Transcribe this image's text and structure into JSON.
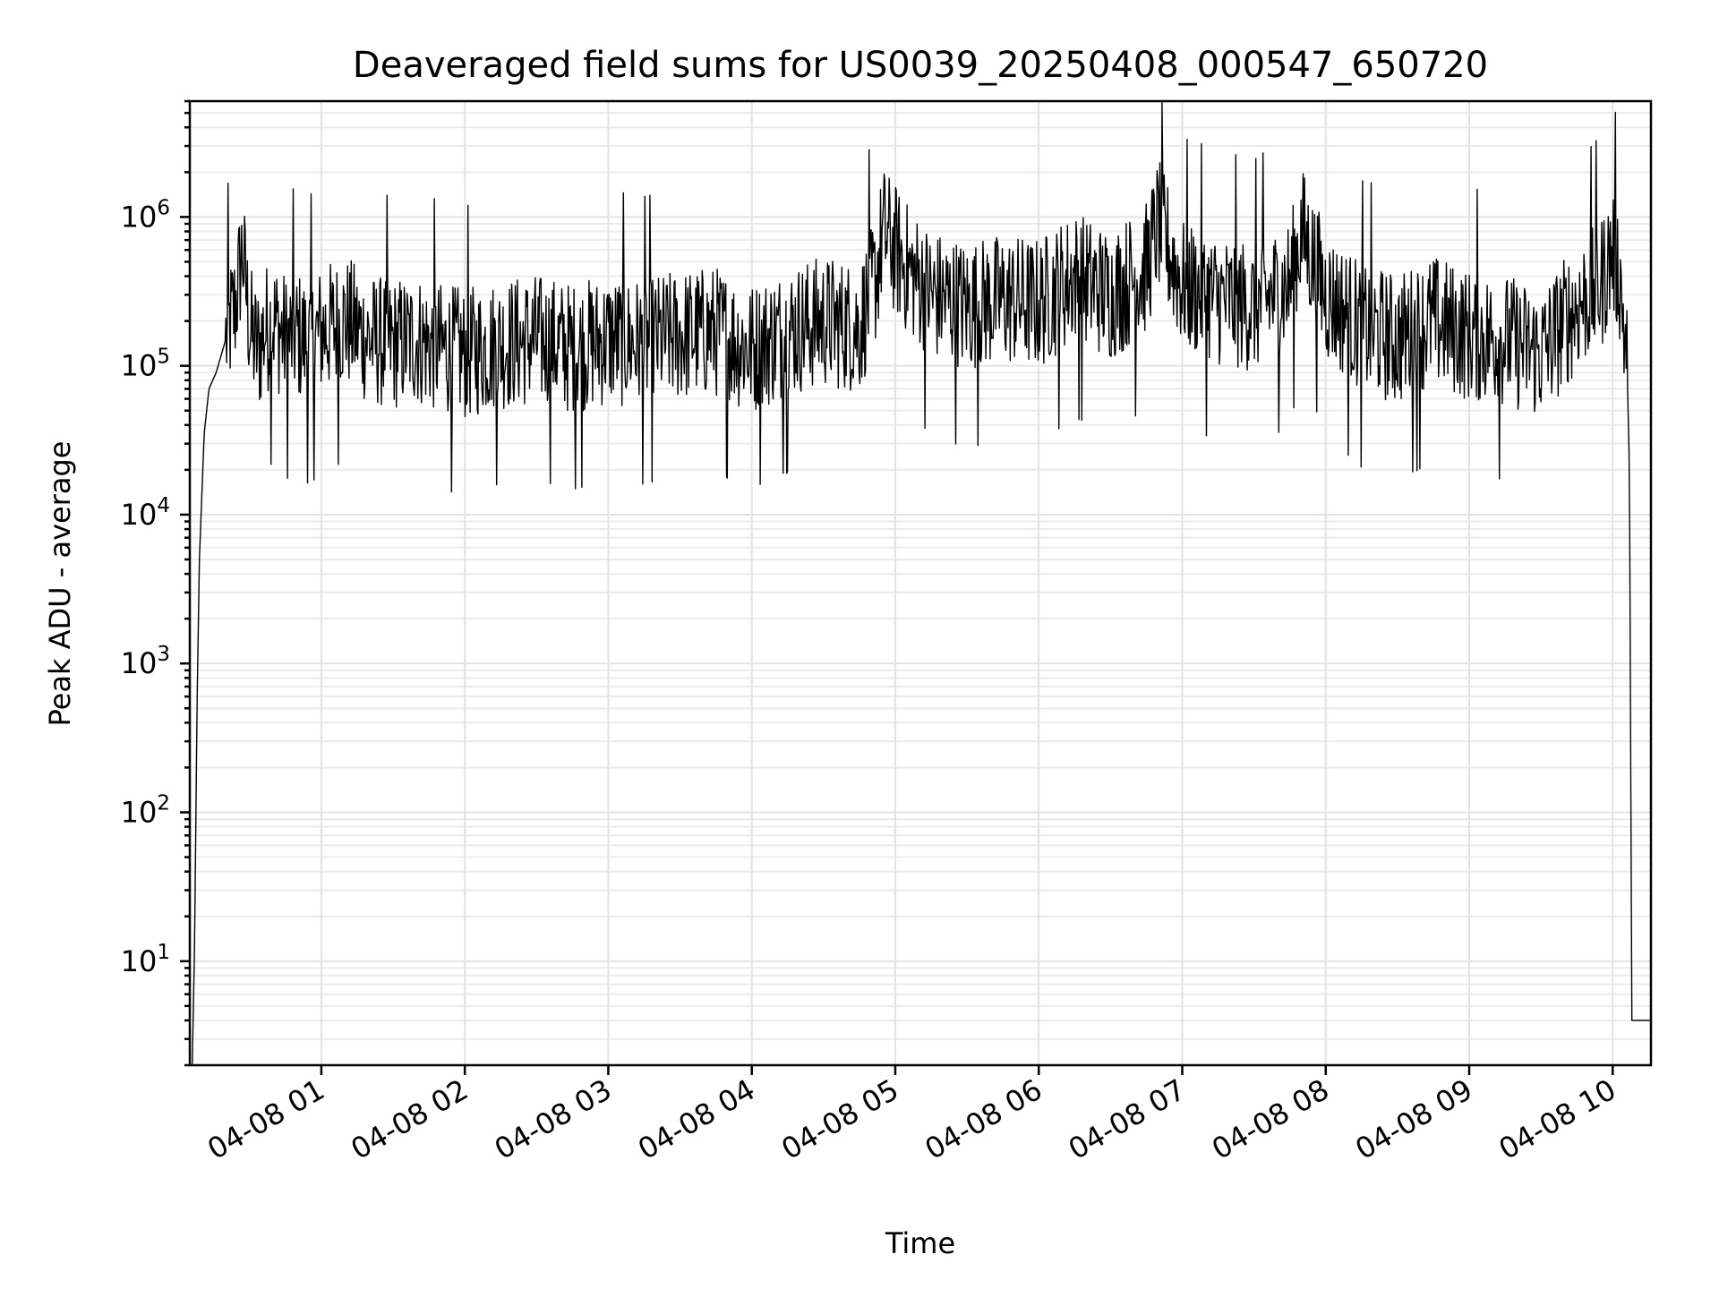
{
  "chart_data": {
    "type": "line",
    "title": "Deaveraged field sums for US0039_20250408_000547_650720",
    "xlabel": "Time",
    "ylabel": "Peak ADU - average",
    "yscale": "log",
    "ylim": [
      2,
      6000000
    ],
    "xlim": [
      "2025-04-08 00:05",
      "2025-04-08 10:16"
    ],
    "grid": true,
    "line_color": "#000000",
    "y_ticks": [
      {
        "value": 10,
        "base": "10",
        "exp": "1"
      },
      {
        "value": 100,
        "base": "10",
        "exp": "2"
      },
      {
        "value": 1000,
        "base": "10",
        "exp": "3"
      },
      {
        "value": 10000,
        "base": "10",
        "exp": "4"
      },
      {
        "value": 100000,
        "base": "10",
        "exp": "5"
      },
      {
        "value": 1000000,
        "base": "10",
        "exp": "6"
      }
    ],
    "x_ticks": [
      {
        "value": "2025-04-08 01:00",
        "label": "04-08 01"
      },
      {
        "value": "2025-04-08 02:00",
        "label": "04-08 02"
      },
      {
        "value": "2025-04-08 03:00",
        "label": "04-08 03"
      },
      {
        "value": "2025-04-08 04:00",
        "label": "04-08 04"
      },
      {
        "value": "2025-04-08 05:00",
        "label": "04-08 05"
      },
      {
        "value": "2025-04-08 06:00",
        "label": "04-08 06"
      },
      {
        "value": "2025-04-08 07:00",
        "label": "04-08 07"
      },
      {
        "value": "2025-04-08 08:00",
        "label": "04-08 08"
      },
      {
        "value": "2025-04-08 09:00",
        "label": "04-08 09"
      },
      {
        "value": "2025-04-08 10:00",
        "label": "04-08 10"
      }
    ],
    "series": [
      {
        "x": [
          "2025-04-08 00:06",
          "2025-04-08 00:07",
          "2025-04-08 00:08",
          "2025-04-08 00:09",
          "2025-04-08 00:11",
          "2025-04-08 00:13",
          "2025-04-08 00:16",
          "2025-04-08 00:20",
          "2025-04-08 00:24",
          "2025-04-08 00:27",
          "2025-04-08 00:30",
          "2025-04-08 00:32",
          "2025-04-08 00:34",
          "2025-04-08 00:36",
          "2025-04-08 00:40",
          "2025-04-08 00:45",
          "2025-04-08 00:50",
          "2025-04-08 00:55",
          "2025-04-08 01:00",
          "2025-04-08 01:10",
          "2025-04-08 01:20",
          "2025-04-08 01:30",
          "2025-04-08 01:40",
          "2025-04-08 01:50",
          "2025-04-08 02:00",
          "2025-04-08 02:15",
          "2025-04-08 02:30",
          "2025-04-08 02:45",
          "2025-04-08 03:00",
          "2025-04-08 03:15",
          "2025-04-08 03:30",
          "2025-04-08 03:45",
          "2025-04-08 04:00",
          "2025-04-08 04:15",
          "2025-04-08 04:30",
          "2025-04-08 04:45",
          "2025-04-08 04:52",
          "2025-04-08 04:55",
          "2025-04-08 05:00",
          "2025-04-08 05:05",
          "2025-04-08 05:15",
          "2025-04-08 05:30",
          "2025-04-08 05:45",
          "2025-04-08 06:00",
          "2025-04-08 06:15",
          "2025-04-08 06:30",
          "2025-04-08 06:45",
          "2025-04-08 06:50",
          "2025-04-08 07:00",
          "2025-04-08 07:15",
          "2025-04-08 07:30",
          "2025-04-08 07:45",
          "2025-04-08 07:50",
          "2025-04-08 08:00",
          "2025-04-08 08:15",
          "2025-04-08 08:30",
          "2025-04-08 08:45",
          "2025-04-08 09:00",
          "2025-04-08 09:15",
          "2025-04-08 09:30",
          "2025-04-08 09:45",
          "2025-04-08 09:55",
          "2025-04-08 10:00",
          "2025-04-08 10:03",
          "2025-04-08 10:06",
          "2025-04-08 10:07",
          "2025-04-08 10:08",
          "2025-04-08 10:12",
          "2025-04-08 10:16"
        ],
        "y": [
          2,
          13,
          500,
          5000,
          35000,
          70000,
          90000,
          150000,
          250000,
          600000,
          180000,
          140000,
          130000,
          170000,
          200000,
          150000,
          160000,
          140000,
          170000,
          200000,
          150000,
          140000,
          150000,
          130000,
          120000,
          140000,
          150000,
          130000,
          150000,
          140000,
          160000,
          170000,
          130000,
          170000,
          200000,
          180000,
          400000,
          800000,
          600000,
          450000,
          300000,
          250000,
          280000,
          260000,
          400000,
          300000,
          450000,
          900000,
          350000,
          280000,
          250000,
          350000,
          800000,
          300000,
          180000,
          150000,
          200000,
          160000,
          150000,
          120000,
          250000,
          350000,
          600000,
          400000,
          100000,
          20000,
          4,
          4,
          4
        ]
      }
    ]
  }
}
